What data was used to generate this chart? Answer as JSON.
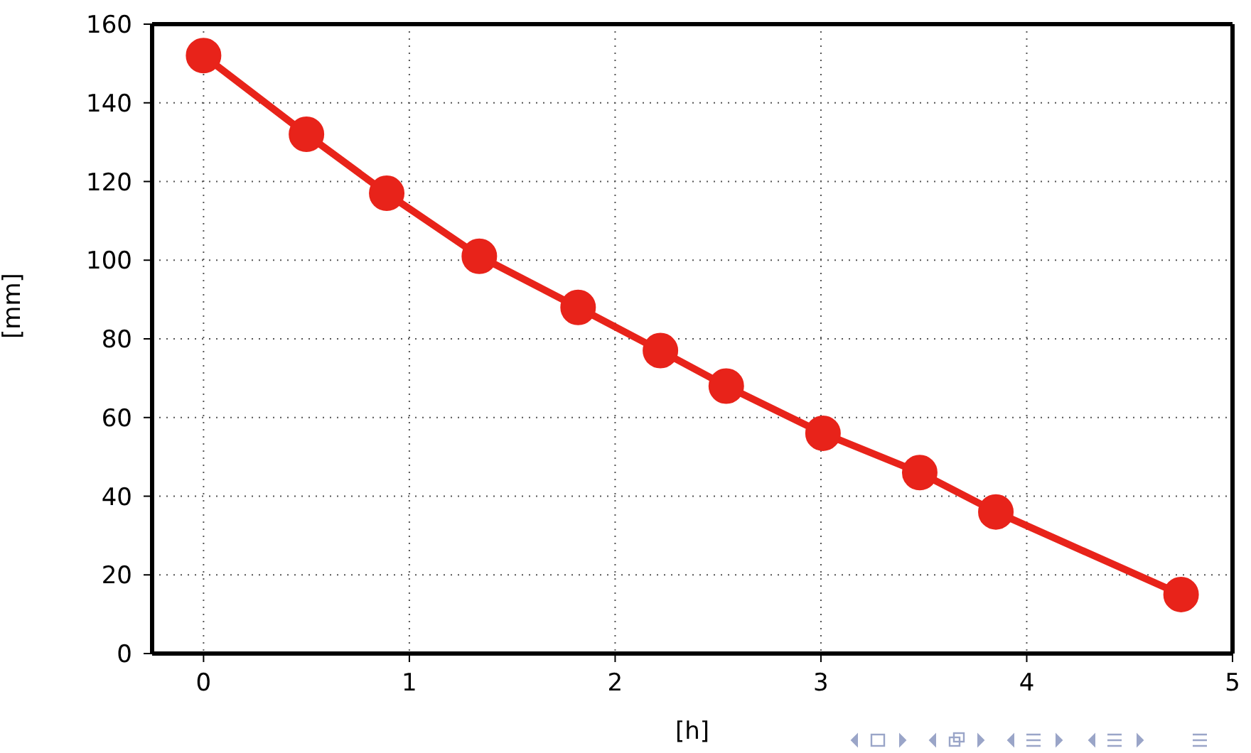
{
  "chart_data": {
    "type": "line",
    "xlabel": "[h]",
    "ylabel": "[mm]",
    "x": [
      0,
      0.5,
      0.89,
      1.34,
      1.82,
      2.22,
      2.54,
      3.01,
      3.48,
      3.85,
      4.75
    ],
    "series": [
      {
        "color": "#e8231a",
        "values": [
          152,
          132,
          117,
          101,
          88,
          77,
          68,
          56,
          46,
          36,
          15
        ]
      }
    ],
    "xlim": [
      -0.25,
      5
    ],
    "xticks": [
      0,
      1,
      2,
      3,
      4,
      5
    ],
    "ylim": [
      0,
      160
    ],
    "yticks": [
      0,
      20,
      40,
      60,
      80,
      100,
      120,
      140,
      160
    ],
    "grid": true,
    "marker": "circle",
    "line_style": "solid",
    "legend": false
  }
}
